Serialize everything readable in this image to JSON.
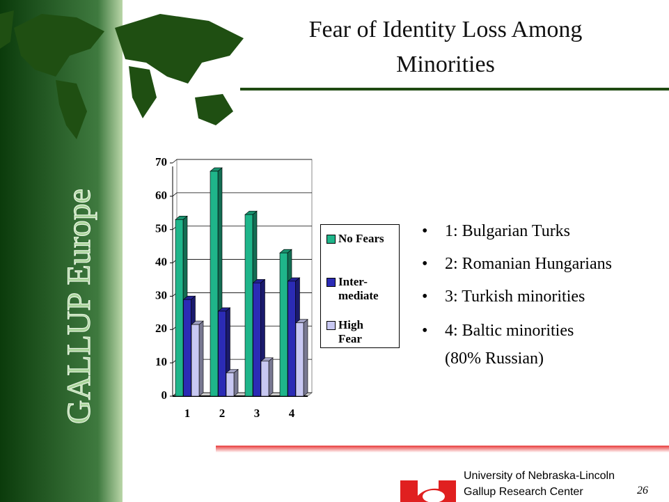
{
  "chart_data": {
    "type": "bar3d",
    "title": "Fear of Identity Loss Among Minorities",
    "categories": [
      "1",
      "2",
      "3",
      "4"
    ],
    "series": [
      {
        "name": "No Fears",
        "color": "#1fb58a",
        "values": [
          53,
          67.5,
          54.5,
          43
        ]
      },
      {
        "name": "Inter-\nmediate",
        "color": "#2b2bb5",
        "values": [
          29,
          25.5,
          34,
          34.5
        ]
      },
      {
        "name": "High\nFear",
        "color": "#c8c8f2",
        "values": [
          21.5,
          7,
          10.5,
          22
        ]
      }
    ],
    "ylim": [
      0,
      70
    ],
    "yticks": [
      0,
      10,
      20,
      30,
      40,
      50,
      60,
      70
    ],
    "grid": true
  },
  "sidebar": "GALLUP Europe",
  "bullets": [
    "1: Bulgarian Turks",
    "2: Romanian Hungarians",
    "3: Turkish minorities",
    "4: Baltic minorities\n(80% Russian)"
  ],
  "footer": {
    "line1": "University of Nebraska-Lincoln",
    "line2": "Gallup Research Center",
    "page": "26"
  }
}
